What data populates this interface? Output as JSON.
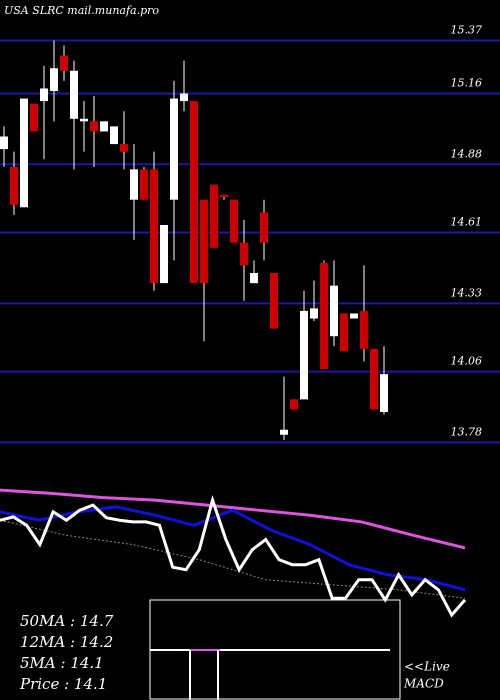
{
  "chart_data": [
    {
      "type": "candlestick",
      "title": "USA SLRC mail.munafa.pro",
      "up_color": "#ffffff",
      "down_color": "#cc0000",
      "grid": true,
      "grid_color": "#1a1aa0",
      "ylim": [
        13.73,
        15.53
      ],
      "yticks": [
        15.37,
        15.16,
        14.88,
        14.61,
        14.33,
        14.06,
        13.78
      ],
      "series": [
        {
          "name": "open",
          "values": [
            14.94,
            14.87,
            14.71,
            15.12,
            15.13,
            15.17,
            15.31,
            15.06,
            15.05,
            15.05,
            15.01,
            14.96,
            14.96,
            14.74,
            14.86,
            14.86,
            14.41,
            14.74,
            15.13,
            15.13,
            14.74,
            14.8,
            14.76,
            14.74,
            14.57,
            14.41,
            14.69,
            14.45,
            13.81,
            13.95,
            13.95,
            14.27,
            14.49,
            14.2,
            14.29,
            14.27,
            14.3,
            14.15,
            13.9
          ]
        },
        {
          "name": "high",
          "values": [
            15.03,
            14.93,
            15.14,
            15.12,
            15.27,
            15.37,
            15.35,
            15.29,
            15.13,
            15.15,
            15.05,
            15.03,
            15.09,
            14.96,
            14.87,
            14.93,
            14.64,
            15.21,
            15.29,
            15.13,
            14.74,
            14.8,
            14.76,
            14.74,
            14.66,
            14.5,
            14.74,
            14.45,
            14.04,
            13.95,
            14.38,
            14.42,
            14.5,
            14.5,
            14.29,
            14.27,
            14.48,
            14.15,
            14.16
          ]
        },
        {
          "name": "low",
          "values": [
            14.87,
            14.68,
            14.71,
            15.01,
            14.9,
            15.05,
            15.21,
            14.86,
            14.93,
            14.87,
            15.01,
            14.96,
            14.86,
            14.58,
            14.74,
            14.38,
            14.41,
            14.5,
            15.09,
            14.41,
            14.18,
            14.55,
            14.74,
            14.57,
            14.34,
            14.41,
            14.5,
            14.23,
            13.79,
            13.91,
            13.95,
            14.26,
            14.07,
            14.16,
            14.14,
            14.27,
            14.1,
            13.91,
            13.89
          ]
        },
        {
          "name": "close",
          "values": [
            14.99,
            14.72,
            15.14,
            15.01,
            15.18,
            15.26,
            15.25,
            15.25,
            15.06,
            15.01,
            15.05,
            15.03,
            14.93,
            14.86,
            14.74,
            14.41,
            14.64,
            15.14,
            15.16,
            14.41,
            14.41,
            14.55,
            14.75,
            14.57,
            14.48,
            14.45,
            14.57,
            14.23,
            13.83,
            13.91,
            14.3,
            14.31,
            14.07,
            14.4,
            14.14,
            14.29,
            14.15,
            13.91,
            14.05
          ]
        }
      ]
    },
    {
      "type": "line",
      "ylim": [
        13.9,
        15.51
      ],
      "series": [
        {
          "name": "50MA",
          "color": "#dd55dd",
          "values": [
            15.39,
            15.35,
            15.3,
            15.27,
            15.21,
            15.15,
            15.09,
            15.01,
            14.85,
            14.7
          ]
        },
        {
          "name": "12MA",
          "color": "#1010dd",
          "values": [
            15.13,
            15.03,
            15.13,
            15.19,
            15.09,
            14.97,
            15.15,
            14.91,
            14.74,
            14.5,
            14.38,
            14.32,
            14.2
          ]
        },
        {
          "name": "5MA",
          "color": "#888888",
          "dash": true,
          "values": [
            15.03,
            14.85,
            14.74,
            14.56,
            14.32,
            14.26,
            14.2,
            14.1
          ]
        },
        {
          "name": "Price",
          "color": "#ffffff",
          "values": [
            15.03,
            15.07,
            14.97,
            14.74,
            15.13,
            15.03,
            15.15,
            15.21,
            15.06,
            15.03,
            15.01,
            15.01,
            14.97,
            14.47,
            14.44,
            14.68,
            15.27,
            14.8,
            14.44,
            14.68,
            14.8,
            14.56,
            14.5,
            14.5,
            14.56,
            14.1,
            14.1,
            14.32,
            14.32,
            14.08,
            14.38,
            14.14,
            14.32,
            14.2,
            13.9,
            14.08
          ]
        }
      ],
      "legend_texts": [
        "50MA : 14.7",
        "12MA : 14.2",
        "5MA : 14.1",
        "Price   : 14.1"
      ],
      "annotations": [
        "<<Live",
        "MACD"
      ]
    }
  ]
}
